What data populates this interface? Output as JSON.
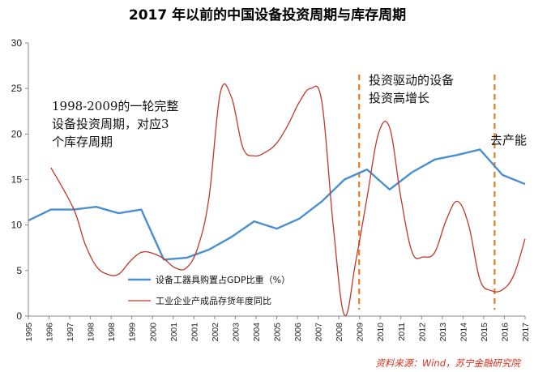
{
  "chart_data": {
    "type": "line",
    "title": "2017 年以前的中国设备投资周期与库存周期",
    "ylim": [
      0,
      30
    ],
    "yticks": [
      0,
      5,
      10,
      15,
      20,
      25,
      30
    ],
    "categories": [
      "1995",
      "1996",
      "1997",
      "1998",
      "1998",
      "1999",
      "2000",
      "2001",
      "2001",
      "2002",
      "2003",
      "2004",
      "2005",
      "2006",
      "2007",
      "2008",
      "2009",
      "2010",
      "2011",
      "2012",
      "2013",
      "2014",
      "2015",
      "2016",
      "2017"
    ],
    "series": [
      {
        "name": "设备工器具购置占GDP比重（%）",
        "color": "#4a8fce",
        "points": [
          [
            1995.0,
            10.5
          ],
          [
            1996.0,
            11.7
          ],
          [
            1997.0,
            11.7
          ],
          [
            1998.0,
            12.0
          ],
          [
            1999.0,
            11.3
          ],
          [
            2000.0,
            11.7
          ],
          [
            2001.0,
            6.2
          ],
          [
            2002.0,
            6.4
          ],
          [
            2003.0,
            7.3
          ],
          [
            2004.0,
            8.7
          ],
          [
            2005.0,
            10.4
          ],
          [
            2006.0,
            9.6
          ],
          [
            2007.0,
            10.7
          ],
          [
            2008.0,
            12.6
          ],
          [
            2009.0,
            15.0
          ],
          [
            2010.0,
            16.1
          ],
          [
            2011.0,
            13.9
          ],
          [
            2012.0,
            15.8
          ],
          [
            2013.0,
            17.2
          ],
          [
            2014.0,
            17.7
          ],
          [
            2015.0,
            18.3
          ],
          [
            2016.0,
            15.5
          ],
          [
            2017.0,
            14.5
          ]
        ]
      },
      {
        "name": "工业企业产成品存货年度同比",
        "color": "#c0392b",
        "points": [
          [
            1996.0,
            16.3
          ],
          [
            1997.0,
            11.8
          ],
          [
            1997.5,
            8.0
          ],
          [
            1998.0,
            5.5
          ],
          [
            1998.5,
            4.6
          ],
          [
            1999.0,
            4.6
          ],
          [
            1999.5,
            6.0
          ],
          [
            2000.0,
            7.0
          ],
          [
            2000.5,
            6.9
          ],
          [
            2001.0,
            6.3
          ],
          [
            2001.5,
            5.3
          ],
          [
            2002.0,
            5.3
          ],
          [
            2002.5,
            7.5
          ],
          [
            2003.0,
            13.0
          ],
          [
            2003.5,
            24.5
          ],
          [
            2004.0,
            24.0
          ],
          [
            2004.5,
            18.5
          ],
          [
            2005.0,
            17.6
          ],
          [
            2005.5,
            18.0
          ],
          [
            2006.0,
            19.0
          ],
          [
            2006.5,
            21.0
          ],
          [
            2007.0,
            23.5
          ],
          [
            2007.5,
            25.0
          ],
          [
            2008.0,
            23.5
          ],
          [
            2008.5,
            10.0
          ],
          [
            2009.0,
            0.1
          ],
          [
            2009.5,
            6.0
          ],
          [
            2010.0,
            13.0
          ],
          [
            2010.5,
            20.0
          ],
          [
            2011.0,
            20.7
          ],
          [
            2011.5,
            13.0
          ],
          [
            2012.0,
            7.0
          ],
          [
            2012.5,
            6.5
          ],
          [
            2013.0,
            7.0
          ],
          [
            2013.5,
            10.5
          ],
          [
            2014.0,
            12.6
          ],
          [
            2014.5,
            10.0
          ],
          [
            2015.0,
            4.0
          ],
          [
            2015.5,
            2.8
          ],
          [
            2016.0,
            2.9
          ],
          [
            2016.5,
            4.5
          ],
          [
            2017.0,
            8.5
          ]
        ]
      }
    ],
    "vlines": [
      2009.65,
      2015.65
    ],
    "annotations": [
      {
        "lines": [
          "1998-2009的一轮完整",
          "设备投资周期，对应3",
          "个库存周期"
        ]
      },
      {
        "lines": [
          "投资驱动的设备",
          "投资高增长"
        ]
      },
      {
        "lines": [
          "去产能"
        ]
      }
    ],
    "source": "资料来源：Wind，苏宁金融研究院",
    "legend_position": "bottom-left-center",
    "grid": false
  }
}
